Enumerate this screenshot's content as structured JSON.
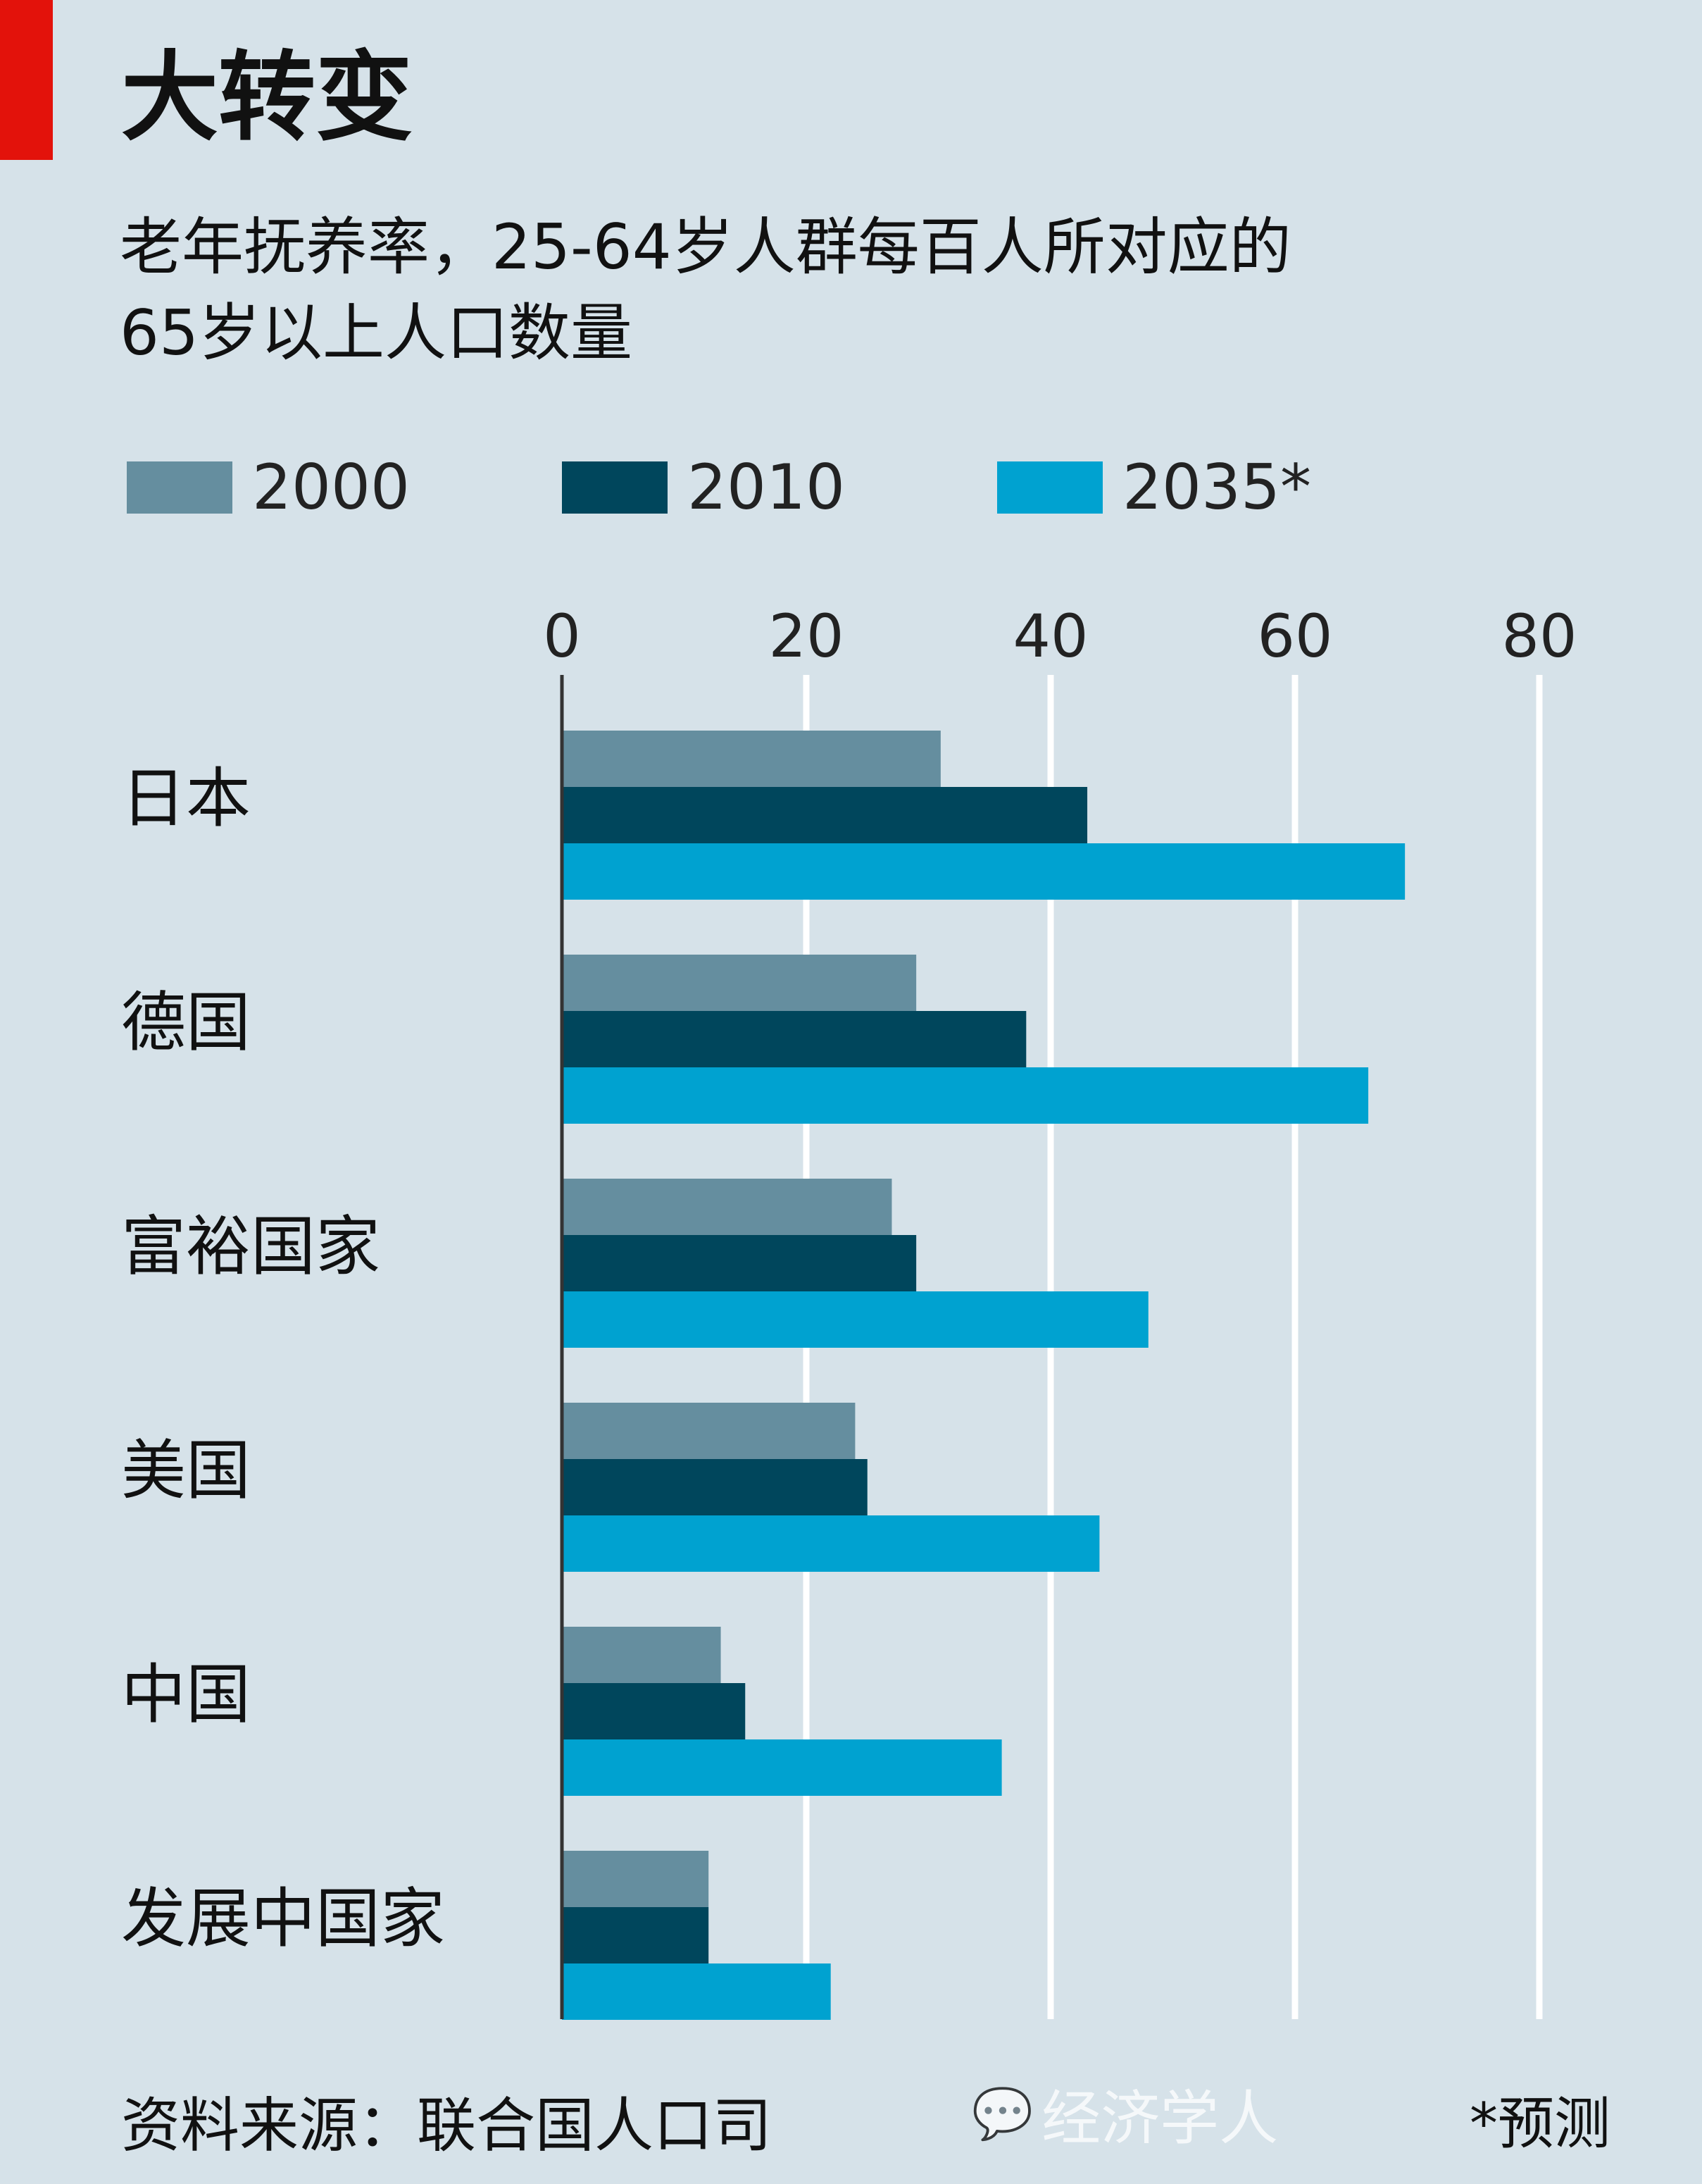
{
  "title": "大转变",
  "subtitle_line1": "老年抚养率，25-64岁人群每百人所对应的",
  "subtitle_line2": "65岁以上人口数量",
  "source": "资料来源：联合国人口司",
  "note": "*预测",
  "watermark": "经济学人",
  "colors": {
    "accent_red": "#e3120b",
    "s2000": "#658e9f",
    "s2010": "#00465c",
    "s2035": "#00a2d0",
    "background": "#d6e2e9"
  },
  "chart_data": {
    "type": "bar",
    "orientation": "horizontal",
    "title": "大转变",
    "categories": [
      "日本",
      "德国",
      "富裕国家",
      "美国",
      "中国",
      "发展中国家"
    ],
    "series": [
      {
        "name": "2000",
        "values": [
          31,
          29,
          27,
          24,
          13,
          12
        ]
      },
      {
        "name": "2010",
        "values": [
          43,
          38,
          29,
          25,
          15,
          12
        ]
      },
      {
        "name": "2035*",
        "values": [
          69,
          66,
          48,
          44,
          36,
          22
        ]
      }
    ],
    "xlim": [
      0,
      80
    ],
    "xticks": [
      "0",
      "20",
      "40",
      "60",
      "80"
    ],
    "grid": true,
    "legend": "top"
  }
}
